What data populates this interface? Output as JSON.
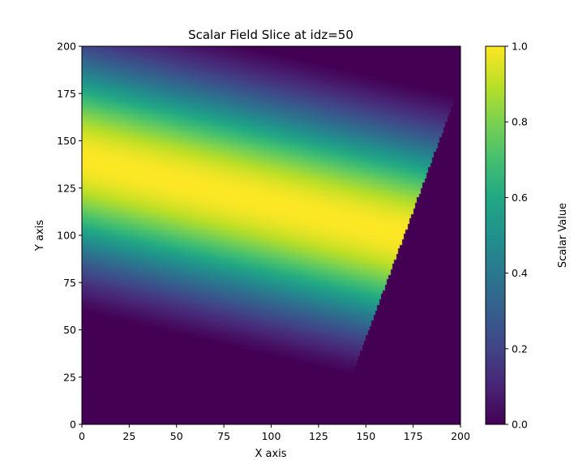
{
  "chart_data": {
    "type": "heatmap",
    "title": "Scalar Field Slice at idz=50",
    "xlabel": "X axis",
    "ylabel": "Y axis",
    "xlim": [
      0,
      200
    ],
    "ylim": [
      0,
      200
    ],
    "xticks": [
      0,
      25,
      50,
      75,
      100,
      125,
      150,
      175,
      200
    ],
    "yticks": [
      0,
      25,
      50,
      75,
      100,
      125,
      150,
      175,
      200
    ],
    "grid": false,
    "colormap": "viridis",
    "field": {
      "description_of_values": "diagonal band of high values (~1.0) from upper-left to center; values fall to 0 at bottom-left and top-right; region right of the line from (133,0) to (200,180) is 0",
      "peak_line": [
        [
          0,
          140
        ],
        [
          170,
          100
        ]
      ],
      "zero_region_boundary": [
        [
          133,
          0
        ],
        [
          200,
          180
        ]
      ]
    },
    "colorbar": {
      "label": "Scalar Value",
      "range": [
        0.0,
        1.0
      ],
      "ticks": [
        "0.0",
        "0.2",
        "0.4",
        "0.6",
        "0.8",
        "1.0"
      ]
    },
    "colors": {
      "viridis_low": "#440154",
      "viridis_mid": "#21918c",
      "viridis_high": "#fde725"
    }
  }
}
